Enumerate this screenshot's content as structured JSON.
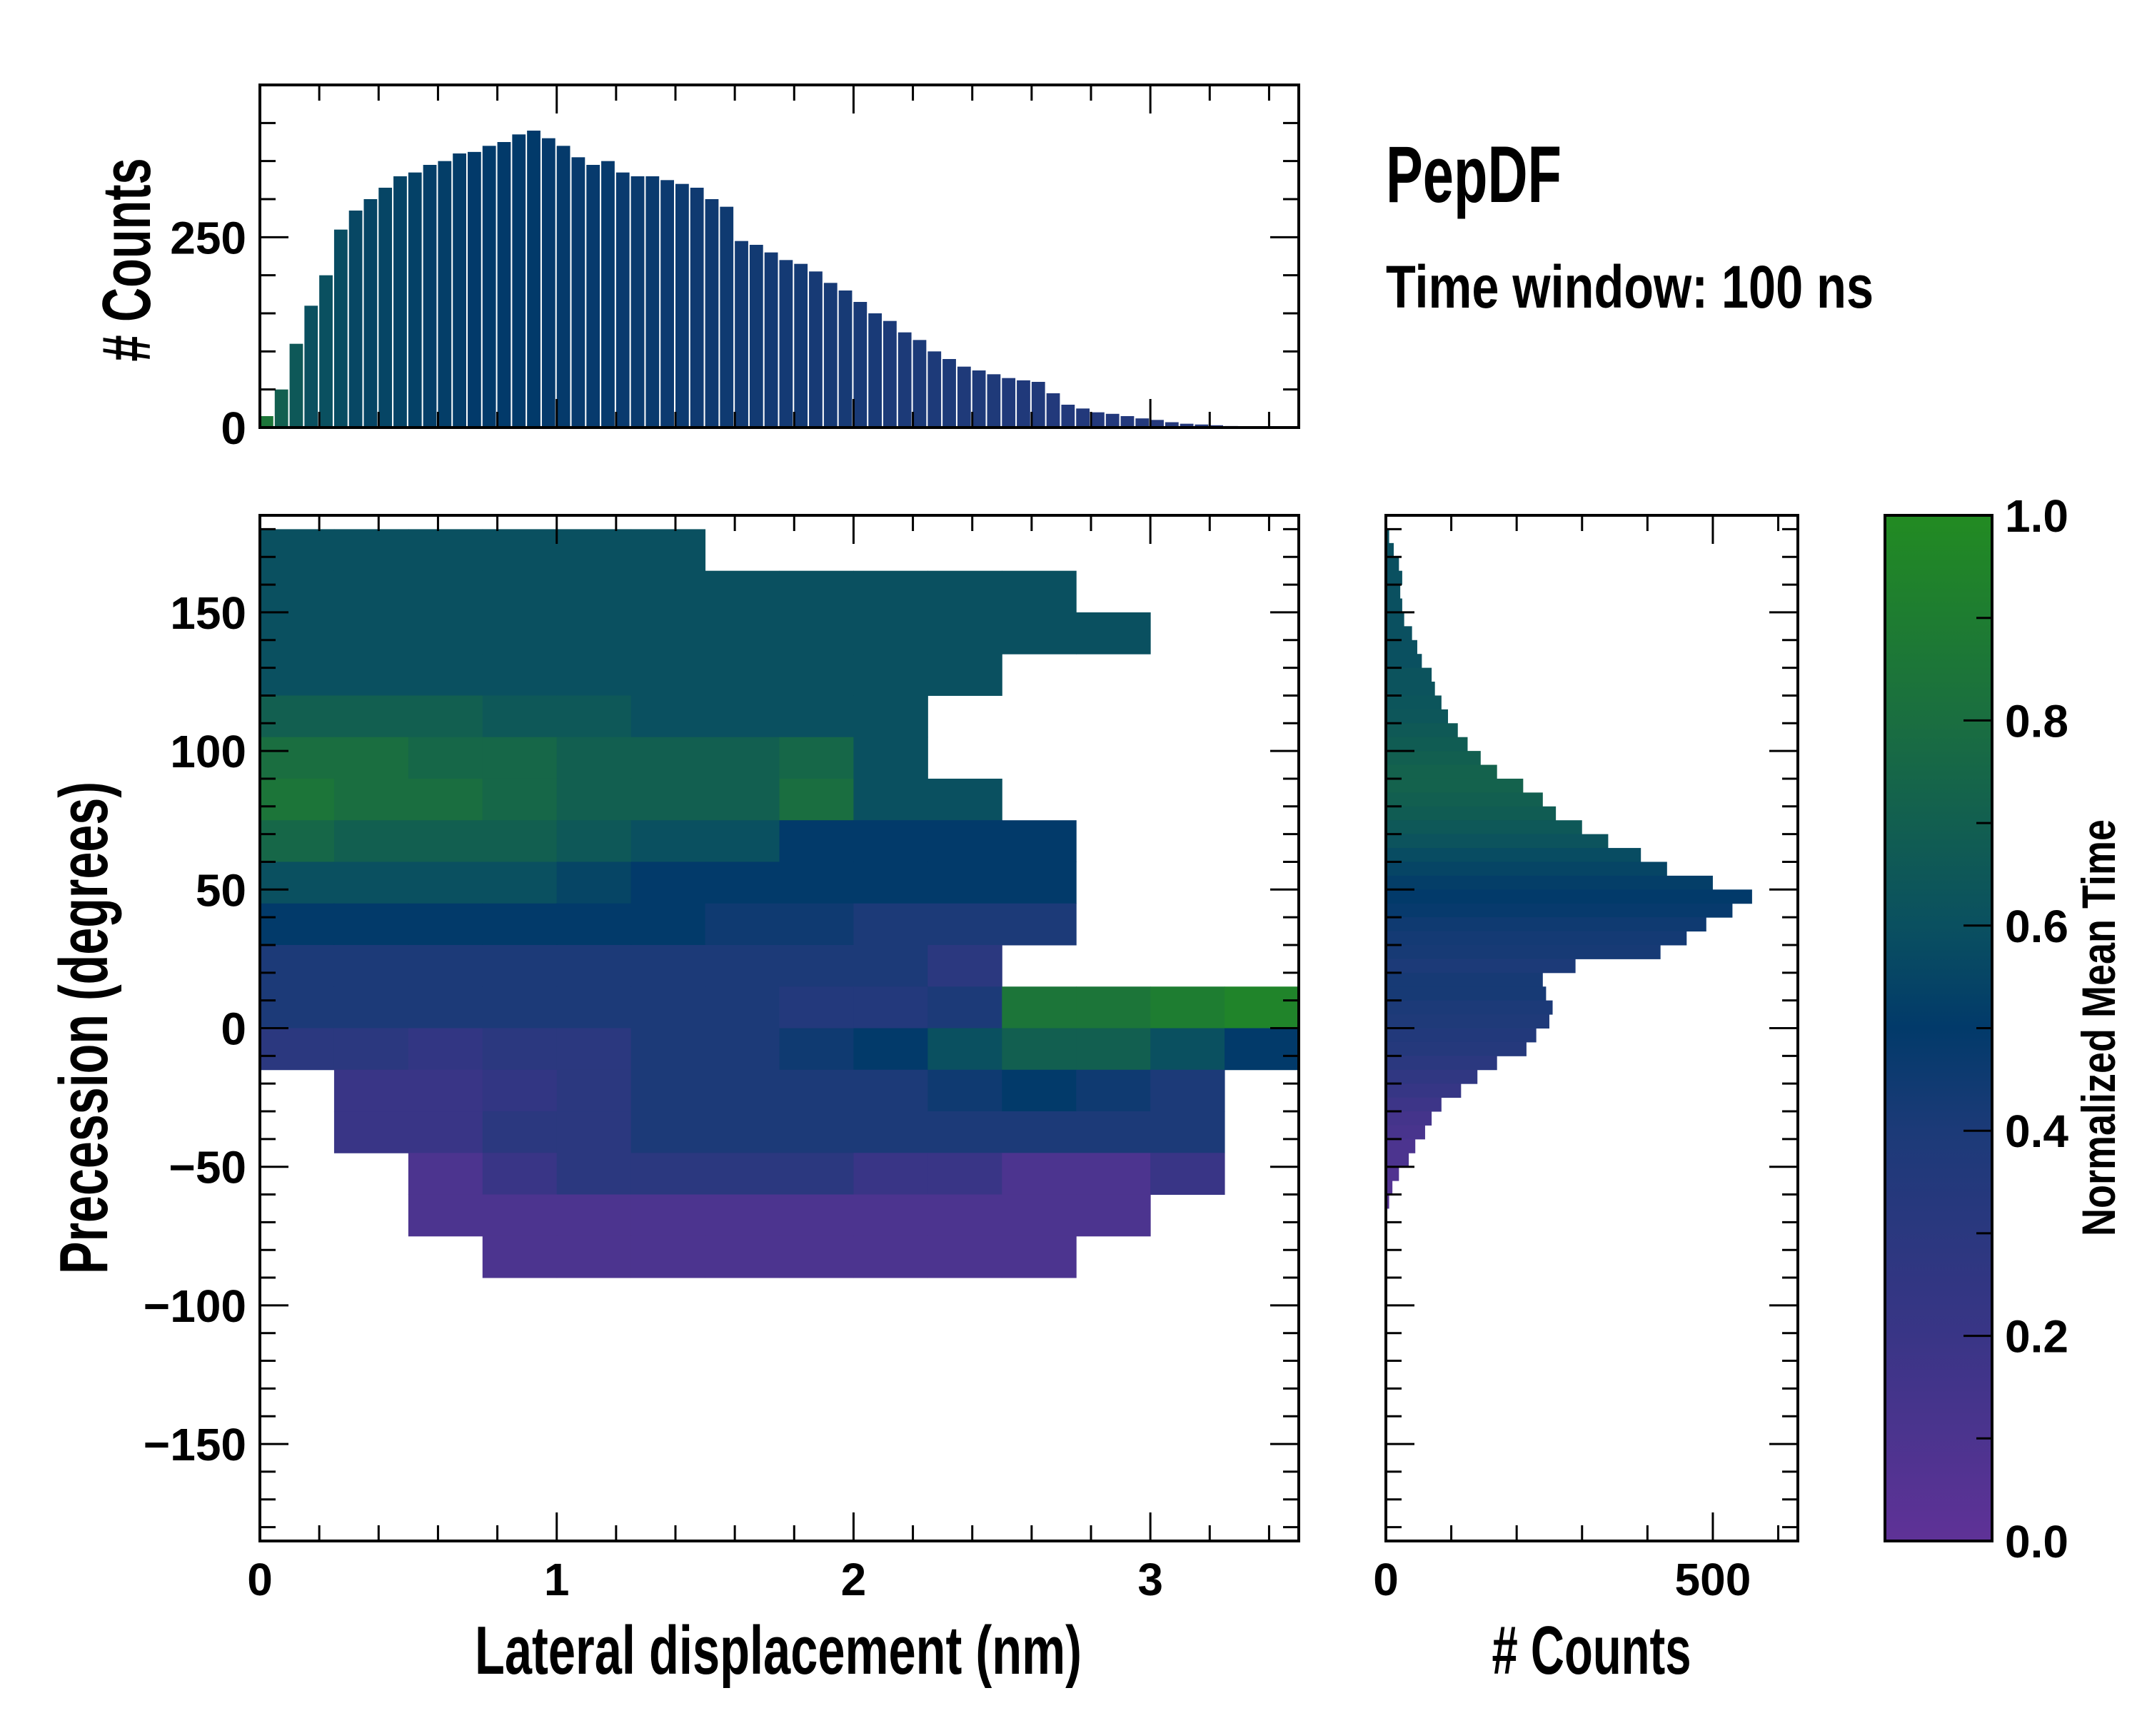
{
  "chart_data": {
    "type": "heatmap",
    "title": "PepDF",
    "subtitle": "Time window: 100 ns",
    "xlabel": "Lateral displacement (nm)",
    "ylabel": "Precession (degrees)",
    "xlim": [
      0,
      3.5
    ],
    "ylim": [
      -185,
      185
    ],
    "xticks": [
      0,
      1,
      2,
      3
    ],
    "yticks": [
      -150,
      -100,
      -50,
      0,
      50,
      100,
      150
    ],
    "xtick_labels": [
      "0",
      "1",
      "2",
      "3"
    ],
    "ytick_labels": [
      "−150",
      "−100",
      "−50",
      "0",
      "50",
      "100",
      "150"
    ],
    "colormap": {
      "label": "Normalized Mean Time",
      "range": [
        0,
        1
      ],
      "ticks": [
        0.0,
        0.2,
        0.4,
        0.6,
        0.8,
        1.0
      ],
      "tick_labels": [
        "0.0",
        "0.2",
        "0.4",
        "0.6",
        "0.8",
        "1.0"
      ],
      "stops": [
        {
          "v": 0.0,
          "color": "#5f3297"
        },
        {
          "v": 0.2,
          "color": "#393586"
        },
        {
          "v": 0.4,
          "color": "#1c3a78"
        },
        {
          "v": 0.5,
          "color": "#023a6a"
        },
        {
          "v": 0.6,
          "color": "#0a5060"
        },
        {
          "v": 0.8,
          "color": "#1a6e40"
        },
        {
          "v": 1.0,
          "color": "#228b22"
        }
      ]
    },
    "heatmap": {
      "x_bin_edges_start": 0,
      "x_bin_width": 0.25,
      "y_bin_top": 180,
      "y_bin_height": 15,
      "mean_time_rows_top_to_bottom": [
        [
          0.6,
          0.6,
          0.6,
          0.6,
          0.6,
          0.6,
          null,
          null,
          null,
          null,
          null,
          null,
          null,
          null
        ],
        [
          0.6,
          0.6,
          0.6,
          0.6,
          0.6,
          0.6,
          0.6,
          0.6,
          0.6,
          0.6,
          0.6,
          null,
          null,
          null
        ],
        [
          0.6,
          0.6,
          0.6,
          0.6,
          0.6,
          0.6,
          0.6,
          0.6,
          0.6,
          0.6,
          0.6,
          0.6,
          null,
          null
        ],
        [
          0.6,
          0.6,
          0.6,
          0.6,
          0.6,
          0.6,
          0.6,
          0.6,
          0.6,
          0.6,
          null,
          null,
          null,
          null
        ],
        [
          0.7,
          0.7,
          0.7,
          0.65,
          0.65,
          0.6,
          0.6,
          0.6,
          0.6,
          null,
          null,
          null,
          null,
          null
        ],
        [
          0.8,
          0.8,
          0.75,
          0.75,
          0.7,
          0.7,
          0.7,
          0.75,
          0.6,
          null,
          null,
          null,
          null,
          null
        ],
        [
          0.85,
          0.8,
          0.8,
          0.75,
          0.7,
          0.7,
          0.7,
          0.8,
          0.6,
          0.6,
          null,
          null,
          null,
          null
        ],
        [
          0.75,
          0.7,
          0.7,
          0.7,
          0.65,
          0.6,
          0.6,
          0.5,
          0.5,
          0.5,
          0.5,
          null,
          null,
          null
        ],
        [
          0.6,
          0.6,
          0.6,
          0.6,
          0.55,
          0.5,
          0.5,
          0.5,
          0.5,
          0.5,
          0.5,
          null,
          null,
          null
        ],
        [
          0.5,
          0.5,
          0.5,
          0.5,
          0.5,
          0.5,
          0.45,
          0.45,
          0.4,
          0.4,
          0.4,
          null,
          null,
          null
        ],
        [
          0.4,
          0.4,
          0.4,
          0.4,
          0.4,
          0.4,
          0.4,
          0.4,
          0.4,
          0.3,
          null,
          null,
          null,
          null
        ],
        [
          0.4,
          0.4,
          0.4,
          0.4,
          0.4,
          0.4,
          0.4,
          0.35,
          0.35,
          0.4,
          0.85,
          0.85,
          0.9,
          0.95
        ],
        [
          0.3,
          0.3,
          0.25,
          0.3,
          0.3,
          0.4,
          0.4,
          0.45,
          0.5,
          0.6,
          0.7,
          0.7,
          0.6,
          0.5
        ],
        [
          null,
          0.2,
          0.2,
          0.25,
          0.3,
          0.4,
          0.4,
          0.4,
          0.4,
          0.45,
          0.5,
          0.45,
          0.4,
          null
        ],
        [
          null,
          0.2,
          0.2,
          0.3,
          0.3,
          0.4,
          0.4,
          0.4,
          0.4,
          0.4,
          0.4,
          0.4,
          0.4,
          null
        ],
        [
          null,
          null,
          0.1,
          0.2,
          0.3,
          0.3,
          0.3,
          0.3,
          0.2,
          0.2,
          0.1,
          0.1,
          0.2,
          null
        ],
        [
          null,
          null,
          0.1,
          0.1,
          0.1,
          0.1,
          0.1,
          0.1,
          0.1,
          0.1,
          0.1,
          0.1,
          null,
          null
        ],
        [
          null,
          null,
          null,
          0.1,
          0.1,
          0.1,
          0.1,
          0.1,
          0.1,
          0.1,
          0.1,
          null,
          null,
          null
        ]
      ]
    },
    "top_histogram": {
      "ylabel": "# Counts",
      "ylim": [
        0,
        450
      ],
      "yticks": [
        0,
        250
      ],
      "ytick_labels": [
        "0",
        "250"
      ],
      "bin_width": 0.05,
      "counts": [
        15,
        50,
        110,
        160,
        200,
        260,
        285,
        300,
        315,
        330,
        335,
        345,
        350,
        360,
        362,
        370,
        375,
        385,
        390,
        380,
        370,
        355,
        345,
        350,
        335,
        330,
        330,
        325,
        320,
        315,
        300,
        290,
        245,
        240,
        230,
        220,
        215,
        205,
        190,
        180,
        165,
        150,
        140,
        125,
        115,
        100,
        90,
        80,
        75,
        70,
        65,
        62,
        60,
        45,
        30,
        25,
        20,
        18,
        15,
        12,
        10,
        7,
        5,
        4,
        3,
        2,
        1,
        1,
        0,
        0
      ],
      "mean_time": [
        0.85,
        0.7,
        0.65,
        0.6,
        0.6,
        0.58,
        0.56,
        0.55,
        0.55,
        0.54,
        0.53,
        0.52,
        0.52,
        0.51,
        0.5,
        0.5,
        0.5,
        0.5,
        0.5,
        0.49,
        0.49,
        0.48,
        0.48,
        0.48,
        0.47,
        0.47,
        0.47,
        0.46,
        0.46,
        0.45,
        0.45,
        0.45,
        0.44,
        0.44,
        0.43,
        0.43,
        0.43,
        0.42,
        0.42,
        0.42,
        0.41,
        0.41,
        0.4,
        0.4,
        0.4,
        0.39,
        0.39,
        0.38,
        0.38,
        0.38,
        0.37,
        0.37,
        0.37,
        0.36,
        0.36,
        0.36,
        0.35,
        0.35,
        0.35,
        0.35,
        0.34,
        0.34,
        0.34,
        0.34,
        0.33,
        0.33,
        0.33,
        0.33,
        0.33,
        0.33
      ]
    },
    "right_histogram": {
      "xlabel": "# Counts",
      "xlim": [
        0,
        630
      ],
      "xticks": [
        0,
        500
      ],
      "xtick_labels": [
        "0",
        "500"
      ],
      "bin_top": 180,
      "bin_height": 5,
      "counts": [
        5,
        12,
        20,
        25,
        22,
        25,
        28,
        40,
        48,
        55,
        70,
        75,
        85,
        95,
        110,
        125,
        145,
        170,
        210,
        240,
        260,
        300,
        340,
        390,
        430,
        500,
        560,
        530,
        490,
        460,
        420,
        290,
        240,
        245,
        255,
        250,
        230,
        215,
        170,
        140,
        115,
        85,
        70,
        60,
        45,
        35,
        20,
        10,
        5,
        2,
        0,
        0,
        0,
        0
      ],
      "mean_time": [
        0.6,
        0.6,
        0.6,
        0.6,
        0.6,
        0.6,
        0.6,
        0.6,
        0.6,
        0.6,
        0.62,
        0.62,
        0.63,
        0.64,
        0.66,
        0.68,
        0.7,
        0.72,
        0.72,
        0.7,
        0.68,
        0.65,
        0.62,
        0.58,
        0.55,
        0.52,
        0.5,
        0.48,
        0.45,
        0.43,
        0.42,
        0.4,
        0.42,
        0.42,
        0.4,
        0.38,
        0.36,
        0.34,
        0.3,
        0.26,
        0.22,
        0.18,
        0.14,
        0.12,
        0.1,
        0.1,
        0.08,
        0.06,
        0.05,
        0.05,
        0.05,
        0.05,
        0.05,
        0.05
      ]
    }
  }
}
